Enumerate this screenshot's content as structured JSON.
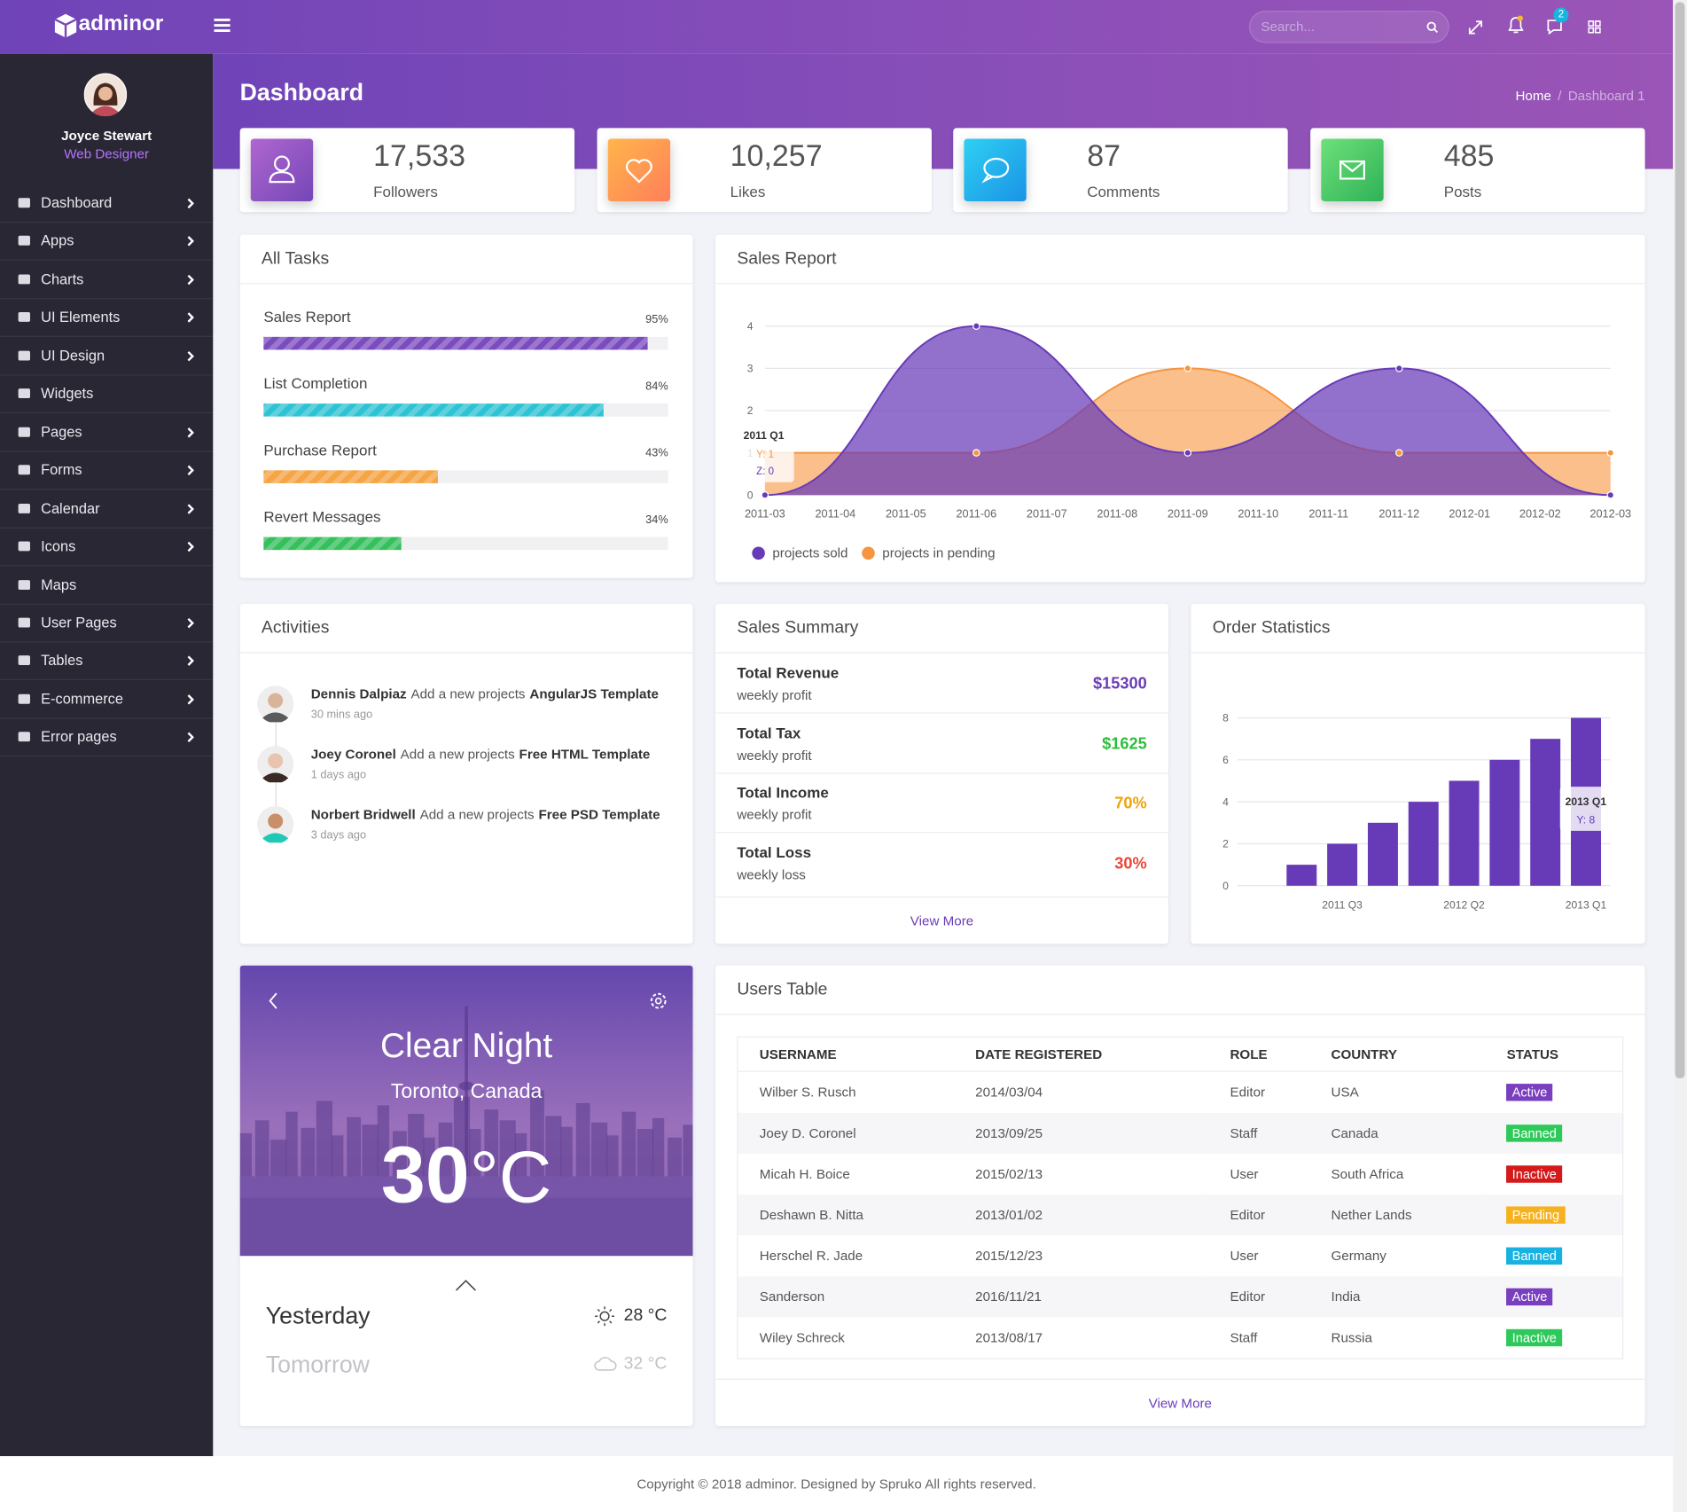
{
  "header": {
    "logo": "adminor",
    "search_placeholder": "Search...",
    "message_badge": "2"
  },
  "sidebar": {
    "user": {
      "name": "Joyce Stewart",
      "role": "Web Designer"
    },
    "menu": [
      {
        "label": "Dashboard",
        "submenu": true
      },
      {
        "label": "Apps",
        "submenu": true
      },
      {
        "label": "Charts",
        "submenu": true
      },
      {
        "label": "UI Elements",
        "submenu": true
      },
      {
        "label": "UI Design",
        "submenu": true
      },
      {
        "label": "Widgets",
        "submenu": false
      },
      {
        "label": "Pages",
        "submenu": true
      },
      {
        "label": "Forms",
        "submenu": true
      },
      {
        "label": "Calendar",
        "submenu": true
      },
      {
        "label": "Icons",
        "submenu": true
      },
      {
        "label": "Maps",
        "submenu": false
      },
      {
        "label": "User Pages",
        "submenu": true
      },
      {
        "label": "Tables",
        "submenu": true
      },
      {
        "label": "E-commerce",
        "submenu": true
      },
      {
        "label": "Error pages",
        "submenu": true
      }
    ]
  },
  "page": {
    "title": "Dashboard",
    "breadcrumb": [
      "Home",
      "Dashboard 1"
    ]
  },
  "stats": [
    {
      "value": "17,533",
      "label": "Followers",
      "colors": [
        "#b066d0",
        "#7447b6"
      ]
    },
    {
      "value": "10,257",
      "label": "Likes",
      "colors": [
        "#ffb54a",
        "#ff7f5a"
      ]
    },
    {
      "value": "87",
      "label": "Comments",
      "colors": [
        "#2fd0f2",
        "#1a93e6"
      ]
    },
    {
      "value": "485",
      "label": "Posts",
      "colors": [
        "#6ee07a",
        "#2eb257"
      ]
    }
  ],
  "tasks": {
    "title": "All Tasks",
    "items": [
      {
        "name": "Sales Report",
        "value": 95,
        "value_label": "95%",
        "color": "#7b4bc0"
      },
      {
        "name": "List Completion",
        "value": 84,
        "value_label": "84%",
        "color": "#2cc4d4"
      },
      {
        "name": "Purchase Report",
        "value": 43,
        "value_label": "43%",
        "color": "#f7a443"
      },
      {
        "name": "Revert Messages",
        "value": 34,
        "value_label": "34%",
        "color": "#34c05a"
      }
    ]
  },
  "sales_report": {
    "title": "Sales Report",
    "chart_data": {
      "type": "area",
      "x": [
        "2011-03",
        "2011-06",
        "2011-09",
        "2011-12",
        "2012-03"
      ],
      "xlim": [
        "2011-03",
        "2012-03"
      ],
      "xticks": [
        "2011-03",
        "2011-04",
        "2011-05",
        "2011-06",
        "2011-07",
        "2011-08",
        "2011-09",
        "2011-10",
        "2011-11",
        "2011-12",
        "2012-01",
        "2012-02",
        "2012-03"
      ],
      "ylim": [
        0,
        4
      ],
      "yticks": [
        0,
        1,
        2,
        3,
        4
      ],
      "grid": true,
      "series": [
        {
          "name": "projects sold",
          "color": "#673ab7",
          "values": [
            0,
            4,
            1,
            3,
            0
          ]
        },
        {
          "name": "projects in pending",
          "color": "#f7953e",
          "values": [
            1,
            1,
            3,
            1,
            1
          ]
        }
      ],
      "tooltip": {
        "title": "2011 Q1",
        "lines": [
          "Y: 1",
          "Z: 0"
        ]
      }
    }
  },
  "activities": {
    "title": "Activities",
    "items": [
      {
        "user": "Dennis Dalpiaz",
        "action": "Add a new projects",
        "project": "AngularJS Template",
        "time": "30 mins ago"
      },
      {
        "user": "Joey Coronel",
        "action": "Add a new projects",
        "project": "Free HTML Template",
        "time": "1 days ago"
      },
      {
        "user": "Norbert Bridwell",
        "action": "Add a new projects",
        "project": "Free PSD Template",
        "time": "3 days ago"
      }
    ]
  },
  "sales_summary": {
    "title": "Sales Summary",
    "items": [
      {
        "label": "Total Revenue",
        "sub": "weekly profit",
        "value": "$15300",
        "color": "#6a3db5"
      },
      {
        "label": "Total Tax",
        "sub": "weekly profit",
        "value": "$1625",
        "color": "#2ebd3c"
      },
      {
        "label": "Total Income",
        "sub": "weekly profit",
        "value": "70%",
        "color": "#f0a30a"
      },
      {
        "label": "Total Loss",
        "sub": "weekly loss",
        "value": "30%",
        "color": "#e9473a"
      }
    ],
    "more": "View More"
  },
  "order_statistics": {
    "title": "Order Statistics",
    "chart_data": {
      "type": "bar",
      "categories": [
        null,
        "2011 Q3",
        null,
        null,
        "2012 Q2",
        null,
        null,
        "2013 Q1"
      ],
      "values": [
        1,
        2,
        3,
        4,
        5,
        6,
        7,
        8
      ],
      "color": "#673ab7",
      "ylim": [
        0,
        8
      ],
      "yticks": [
        0,
        2,
        4,
        6,
        8
      ],
      "grid": true,
      "tooltip": {
        "title": "2013 Q1",
        "lines": [
          "Y: 8"
        ]
      }
    }
  },
  "weather": {
    "condition": "Clear Night",
    "location": "Toronto, Canada",
    "temperature": "30",
    "unit": "°C",
    "forecast": [
      {
        "day": "Yesterday",
        "temp": "28 °C"
      },
      {
        "day": "Tomorrow",
        "temp": "32 °C"
      }
    ]
  },
  "users_table": {
    "title": "Users Table",
    "columns": [
      "USERNAME",
      "DATE REGISTERED",
      "ROLE",
      "COUNTRY",
      "STATUS"
    ],
    "rows": [
      [
        "Wilber S. Rusch",
        "2014/03/04",
        "Editor",
        "USA",
        "Active"
      ],
      [
        "Joey D. Coronel",
        "2013/09/25",
        "Staff",
        "Canada",
        "Banned"
      ],
      [
        "Micah H. Boice",
        "2015/02/13",
        "User",
        "South Africa",
        "Inactive"
      ],
      [
        "Deshawn B. Nitta",
        "2013/01/02",
        "Editor",
        "Nether Lands",
        "Pending"
      ],
      [
        "Herschel R. Jade",
        "2015/12/23",
        "User",
        "Germany",
        "Banned"
      ],
      [
        "Sanderson",
        "2016/11/21",
        "Editor",
        "India",
        "Active"
      ],
      [
        "Wiley Schreck",
        "2013/08/17",
        "Staff",
        "Russia",
        "Inactive"
      ]
    ],
    "status_colors": [
      "#7a3fbf",
      "#2ec95a",
      "#d41a1a",
      "#f6b21e",
      "#17b2e2",
      "#7a3fbf",
      "#2ec95a"
    ],
    "more": "View More"
  },
  "footer": {
    "text": "Copyright © 2018 adminor. Designed by Spruko All rights reserved."
  }
}
